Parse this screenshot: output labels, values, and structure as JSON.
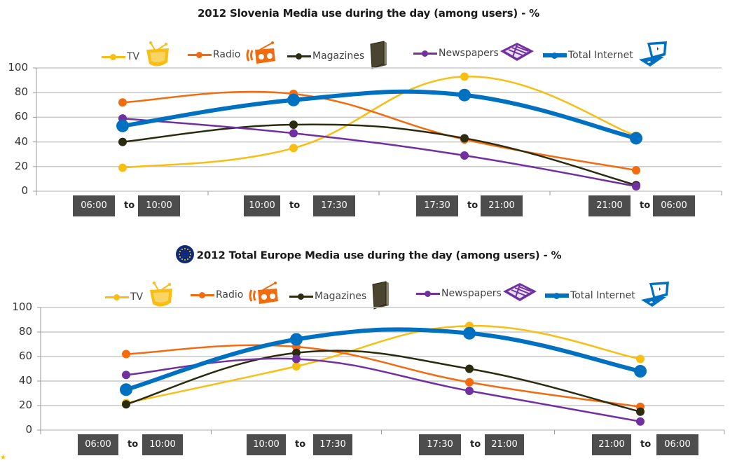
{
  "chart_data": [
    {
      "type": "line",
      "title": "2012 Slovenia Media use during the day (among users)  - %",
      "has_eu_flag_icon": false,
      "xlabel": "",
      "ylabel": "",
      "ylim": [
        0,
        100
      ],
      "yticks": [
        "0",
        "20",
        "40",
        "60",
        "80",
        "100"
      ],
      "grid": true,
      "legend_position": "top",
      "categories": [
        {
          "from": "06:00",
          "to_label": "to",
          "to": "10:00"
        },
        {
          "from": "10:00",
          "to_label": "to",
          "to": "17:30"
        },
        {
          "from": "17:30",
          "to_label": "to",
          "to": "21:00"
        },
        {
          "from": "21:00",
          "to_label": "to",
          "to": "06:00"
        }
      ],
      "series": [
        {
          "name": "TV",
          "color": "#F9BE14",
          "icon": "tv-icon",
          "values": [
            19,
            35,
            93,
            45
          ]
        },
        {
          "name": "Radio",
          "color": "#F26B0F",
          "icon": "radio-icon",
          "values": [
            72,
            79,
            42,
            17
          ]
        },
        {
          "name": "Magazines",
          "color": "#2B2B0F",
          "icon": "magazine-icon",
          "values": [
            40,
            54,
            43,
            5
          ]
        },
        {
          "name": "Newspapers",
          "color": "#7030A0",
          "icon": "newspaper-icon",
          "values": [
            59,
            47,
            29,
            4
          ]
        },
        {
          "name": "Total Internet",
          "color": "#0070C0",
          "icon": "laptop-icon",
          "values": [
            53,
            74,
            78,
            43
          ]
        }
      ]
    },
    {
      "type": "line",
      "title": "2012 Total Europe Media use during the day (among users)  - %",
      "has_eu_flag_icon": true,
      "xlabel": "",
      "ylabel": "",
      "ylim": [
        0,
        100
      ],
      "yticks": [
        "0",
        "20",
        "40",
        "60",
        "80",
        "100"
      ],
      "grid": true,
      "legend_position": "top",
      "categories": [
        {
          "from": "06:00",
          "to_label": "to",
          "to": "10:00"
        },
        {
          "from": "10:00",
          "to_label": "to",
          "to": "17:30"
        },
        {
          "from": "17:30",
          "to_label": "to",
          "to": "21:00"
        },
        {
          "from": "21:00",
          "to_label": "to",
          "to": "06:00"
        }
      ],
      "series": [
        {
          "name": "TV",
          "color": "#F9BE14",
          "icon": "tv-icon",
          "values": [
            22,
            52,
            85,
            58
          ]
        },
        {
          "name": "Radio",
          "color": "#F26B0F",
          "icon": "radio-icon",
          "values": [
            62,
            68,
            39,
            19
          ]
        },
        {
          "name": "Magazines",
          "color": "#2B2B0F",
          "icon": "magazine-icon",
          "values": [
            21,
            63,
            50,
            15
          ]
        },
        {
          "name": "Newspapers",
          "color": "#7030A0",
          "icon": "newspaper-icon",
          "values": [
            45,
            58,
            32,
            7
          ]
        },
        {
          "name": "Total Internet",
          "color": "#0070C0",
          "icon": "laptop-icon",
          "values": [
            33,
            74,
            79,
            48
          ]
        }
      ]
    }
  ]
}
